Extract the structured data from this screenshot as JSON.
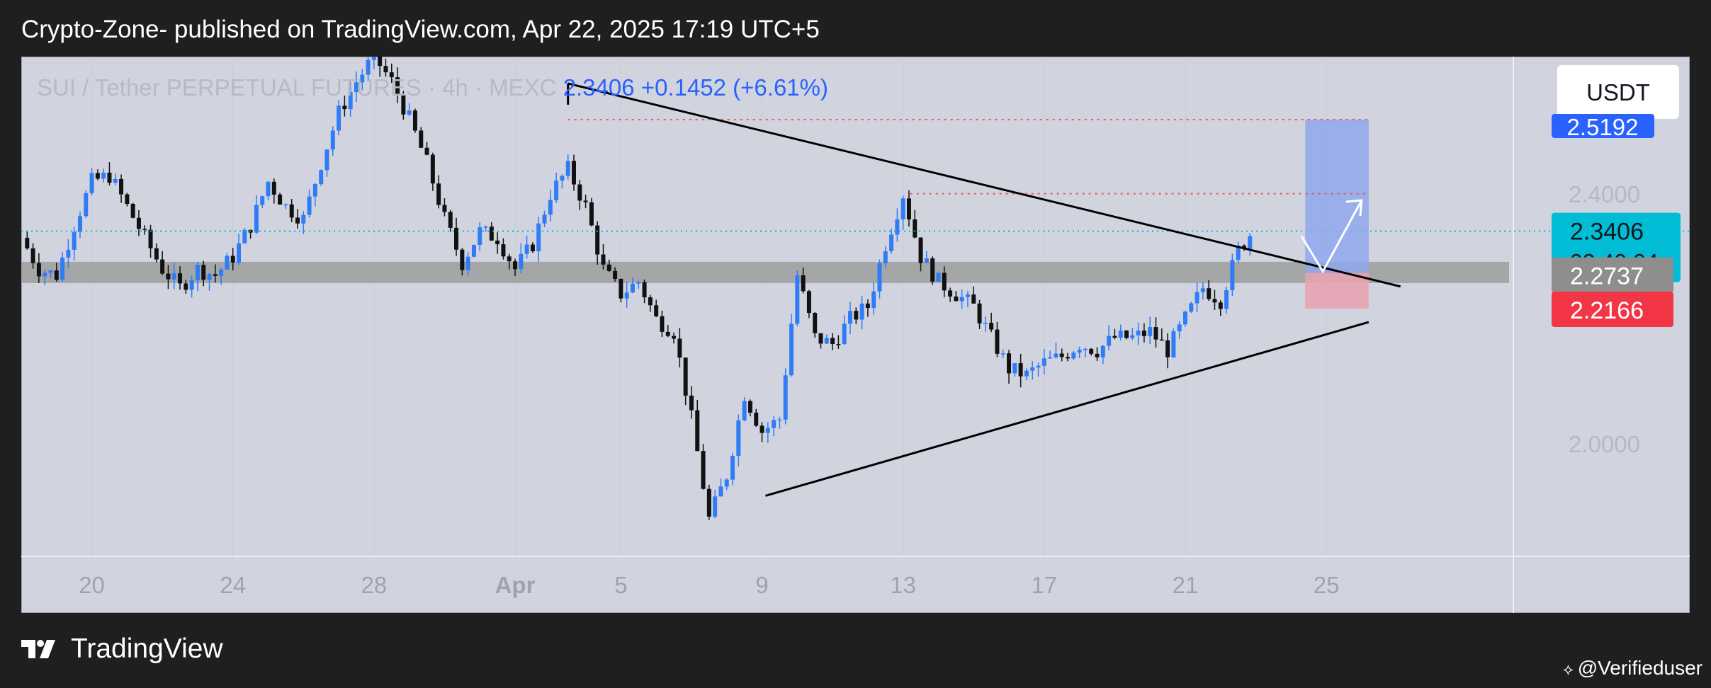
{
  "header": {
    "publish_line": "Crypto-Zone- published on TradingView.com, Apr 22, 2025 17:19 UTC+5"
  },
  "footer": {
    "logo_text": "TradingView",
    "watermark": "@Verifieduser"
  },
  "colors": {
    "page_bg": "#1f1f1f",
    "chart_bg": "#d1d4de",
    "up_candle": "#2f7cf6",
    "down_candle": "#111111",
    "last_price": "#00bcd4",
    "target": "#2962ff",
    "stop": "#f23645",
    "zone": "#9e9e9e"
  },
  "chart_data": {
    "type": "candlestick",
    "symbol_line": "SUI / Tether PERPETUAL FUTURES · 4h · MEXC",
    "last_price": "2.3406",
    "change": "+0.1452 (+6.61%)",
    "currency": "USDT",
    "y_ticks": [
      "2.4000",
      "2.0000"
    ],
    "y_range": [
      1.82,
      2.62
    ],
    "x_ticks": [
      {
        "label": "20",
        "day": 20
      },
      {
        "label": "24",
        "day": 24
      },
      {
        "label": "28",
        "day": 28
      },
      {
        "label": "Apr",
        "day": 32
      },
      {
        "label": "5",
        "day": 35
      },
      {
        "label": "9",
        "day": 39
      },
      {
        "label": "13",
        "day": 43
      },
      {
        "label": "17",
        "day": 47
      },
      {
        "label": "21",
        "day": 51
      },
      {
        "label": "25",
        "day": 55
      }
    ],
    "x_range_days": [
      18.0,
      60.3
    ],
    "price_labels": [
      {
        "name": "target",
        "value": "2.5192"
      },
      {
        "name": "last",
        "value": "2.3406",
        "countdown": "03:40:04"
      },
      {
        "name": "zone",
        "value": "2.2737"
      },
      {
        "name": "stop",
        "value": "2.2166"
      }
    ],
    "close_path": [
      [
        18.0,
        2.33
      ],
      [
        18.5,
        2.28
      ],
      [
        19.0,
        2.27
      ],
      [
        19.5,
        2.35
      ],
      [
        20.0,
        2.42
      ],
      [
        20.5,
        2.43
      ],
      [
        21.0,
        2.38
      ],
      [
        21.5,
        2.33
      ],
      [
        22.0,
        2.28
      ],
      [
        22.5,
        2.25
      ],
      [
        23.0,
        2.28
      ],
      [
        23.5,
        2.27
      ],
      [
        24.0,
        2.3
      ],
      [
        24.5,
        2.35
      ],
      [
        25.0,
        2.42
      ],
      [
        25.5,
        2.38
      ],
      [
        26.0,
        2.36
      ],
      [
        26.5,
        2.45
      ],
      [
        27.0,
        2.53
      ],
      [
        27.5,
        2.58
      ],
      [
        28.0,
        2.62
      ],
      [
        28.5,
        2.58
      ],
      [
        29.0,
        2.52
      ],
      [
        29.5,
        2.45
      ],
      [
        30.0,
        2.36
      ],
      [
        30.5,
        2.29
      ],
      [
        31.0,
        2.34
      ],
      [
        31.5,
        2.33
      ],
      [
        32.0,
        2.28
      ],
      [
        32.5,
        2.32
      ],
      [
        33.0,
        2.4
      ],
      [
        33.5,
        2.44
      ],
      [
        34.0,
        2.38
      ],
      [
        34.5,
        2.28
      ],
      [
        35.0,
        2.24
      ],
      [
        35.5,
        2.26
      ],
      [
        36.0,
        2.2
      ],
      [
        36.5,
        2.18
      ],
      [
        37.0,
        2.04
      ],
      [
        37.5,
        1.88
      ],
      [
        38.0,
        1.95
      ],
      [
        38.5,
        2.08
      ],
      [
        39.0,
        2.02
      ],
      [
        39.5,
        2.04
      ],
      [
        40.0,
        2.27
      ],
      [
        40.5,
        2.17
      ],
      [
        41.0,
        2.16
      ],
      [
        41.5,
        2.2
      ],
      [
        42.0,
        2.22
      ],
      [
        42.5,
        2.32
      ],
      [
        43.0,
        2.4
      ],
      [
        43.5,
        2.3
      ],
      [
        44.0,
        2.26
      ],
      [
        44.5,
        2.24
      ],
      [
        45.0,
        2.22
      ],
      [
        45.5,
        2.17
      ],
      [
        46.0,
        2.12
      ],
      [
        46.5,
        2.11
      ],
      [
        47.0,
        2.13
      ],
      [
        47.5,
        2.14
      ],
      [
        48.0,
        2.16
      ],
      [
        48.5,
        2.15
      ],
      [
        49.0,
        2.17
      ],
      [
        49.5,
        2.17
      ],
      [
        50.0,
        2.18
      ],
      [
        50.5,
        2.15
      ],
      [
        51.0,
        2.2
      ],
      [
        51.5,
        2.25
      ],
      [
        52.0,
        2.23
      ],
      [
        52.5,
        2.31
      ],
      [
        52.9,
        2.3406
      ]
    ],
    "annotations": {
      "upper_trendline": [
        [
          33.5,
          2.577
        ],
        [
          57.1,
          2.252
        ]
      ],
      "lower_trendline": [
        [
          39.1,
          1.917
        ],
        [
          56.2,
          2.195
        ]
      ],
      "top_dotted_line": {
        "y": 2.5192,
        "x_from": 33.5,
        "x_to": 56.2
      },
      "mid_dotted_line": {
        "y": 2.4006,
        "x_from": 43.2,
        "x_to": 56.2
      },
      "support_zone": [
        2.2575,
        2.2915
      ],
      "target_box": {
        "x_from": 54.4,
        "x_to": 56.2,
        "y_from": 2.2737,
        "y_to": 2.5192
      },
      "stop_box": {
        "x_from": 54.4,
        "x_to": 56.2,
        "y_from": 2.2166,
        "y_to": 2.2737
      },
      "projection_arrow": [
        [
          54.3,
          2.332
        ],
        [
          54.9,
          2.276
        ],
        [
          56.0,
          2.39
        ]
      ]
    }
  }
}
